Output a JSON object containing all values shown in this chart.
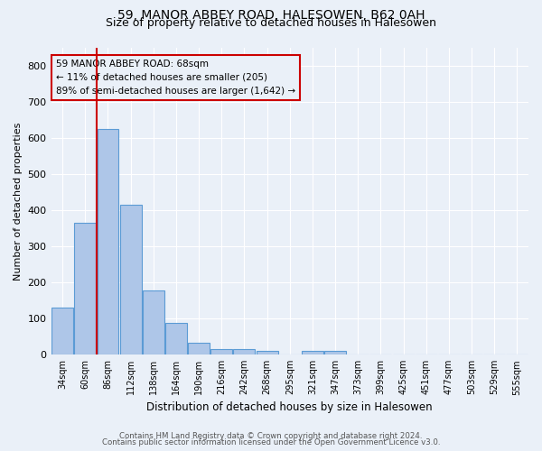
{
  "title1": "59, MANOR ABBEY ROAD, HALESOWEN, B62 0AH",
  "title2": "Size of property relative to detached houses in Halesowen",
  "xlabel": "Distribution of detached houses by size in Halesowen",
  "ylabel": "Number of detached properties",
  "bar_values": [
    130,
    365,
    625,
    415,
    178,
    88,
    32,
    15,
    15,
    10,
    0,
    10,
    10,
    0,
    0,
    0,
    0,
    0,
    0,
    0,
    0
  ],
  "bar_labels": [
    "34sqm",
    "60sqm",
    "86sqm",
    "112sqm",
    "138sqm",
    "164sqm",
    "190sqm",
    "216sqm",
    "242sqm",
    "268sqm",
    "295sqm",
    "321sqm",
    "347sqm",
    "373sqm",
    "399sqm",
    "425sqm",
    "451sqm",
    "477sqm",
    "503sqm",
    "529sqm",
    "555sqm"
  ],
  "bar_color": "#aec6e8",
  "bar_edge_color": "#5b9bd5",
  "vline_x": 1.5,
  "vline_color": "#cc0000",
  "ylim": [
    0,
    850
  ],
  "yticks": [
    0,
    100,
    200,
    300,
    400,
    500,
    600,
    700,
    800
  ],
  "annotation_title": "59 MANOR ABBEY ROAD: 68sqm",
  "annotation_line1": "← 11% of detached houses are smaller (205)",
  "annotation_line2": "89% of semi-detached houses are larger (1,642) →",
  "annotation_box_color": "#cc0000",
  "footer1": "Contains HM Land Registry data © Crown copyright and database right 2024.",
  "footer2": "Contains public sector information licensed under the Open Government Licence v3.0.",
  "bg_color": "#eaf0f8",
  "grid_color": "#ffffff",
  "title1_fontsize": 10,
  "title2_fontsize": 9
}
